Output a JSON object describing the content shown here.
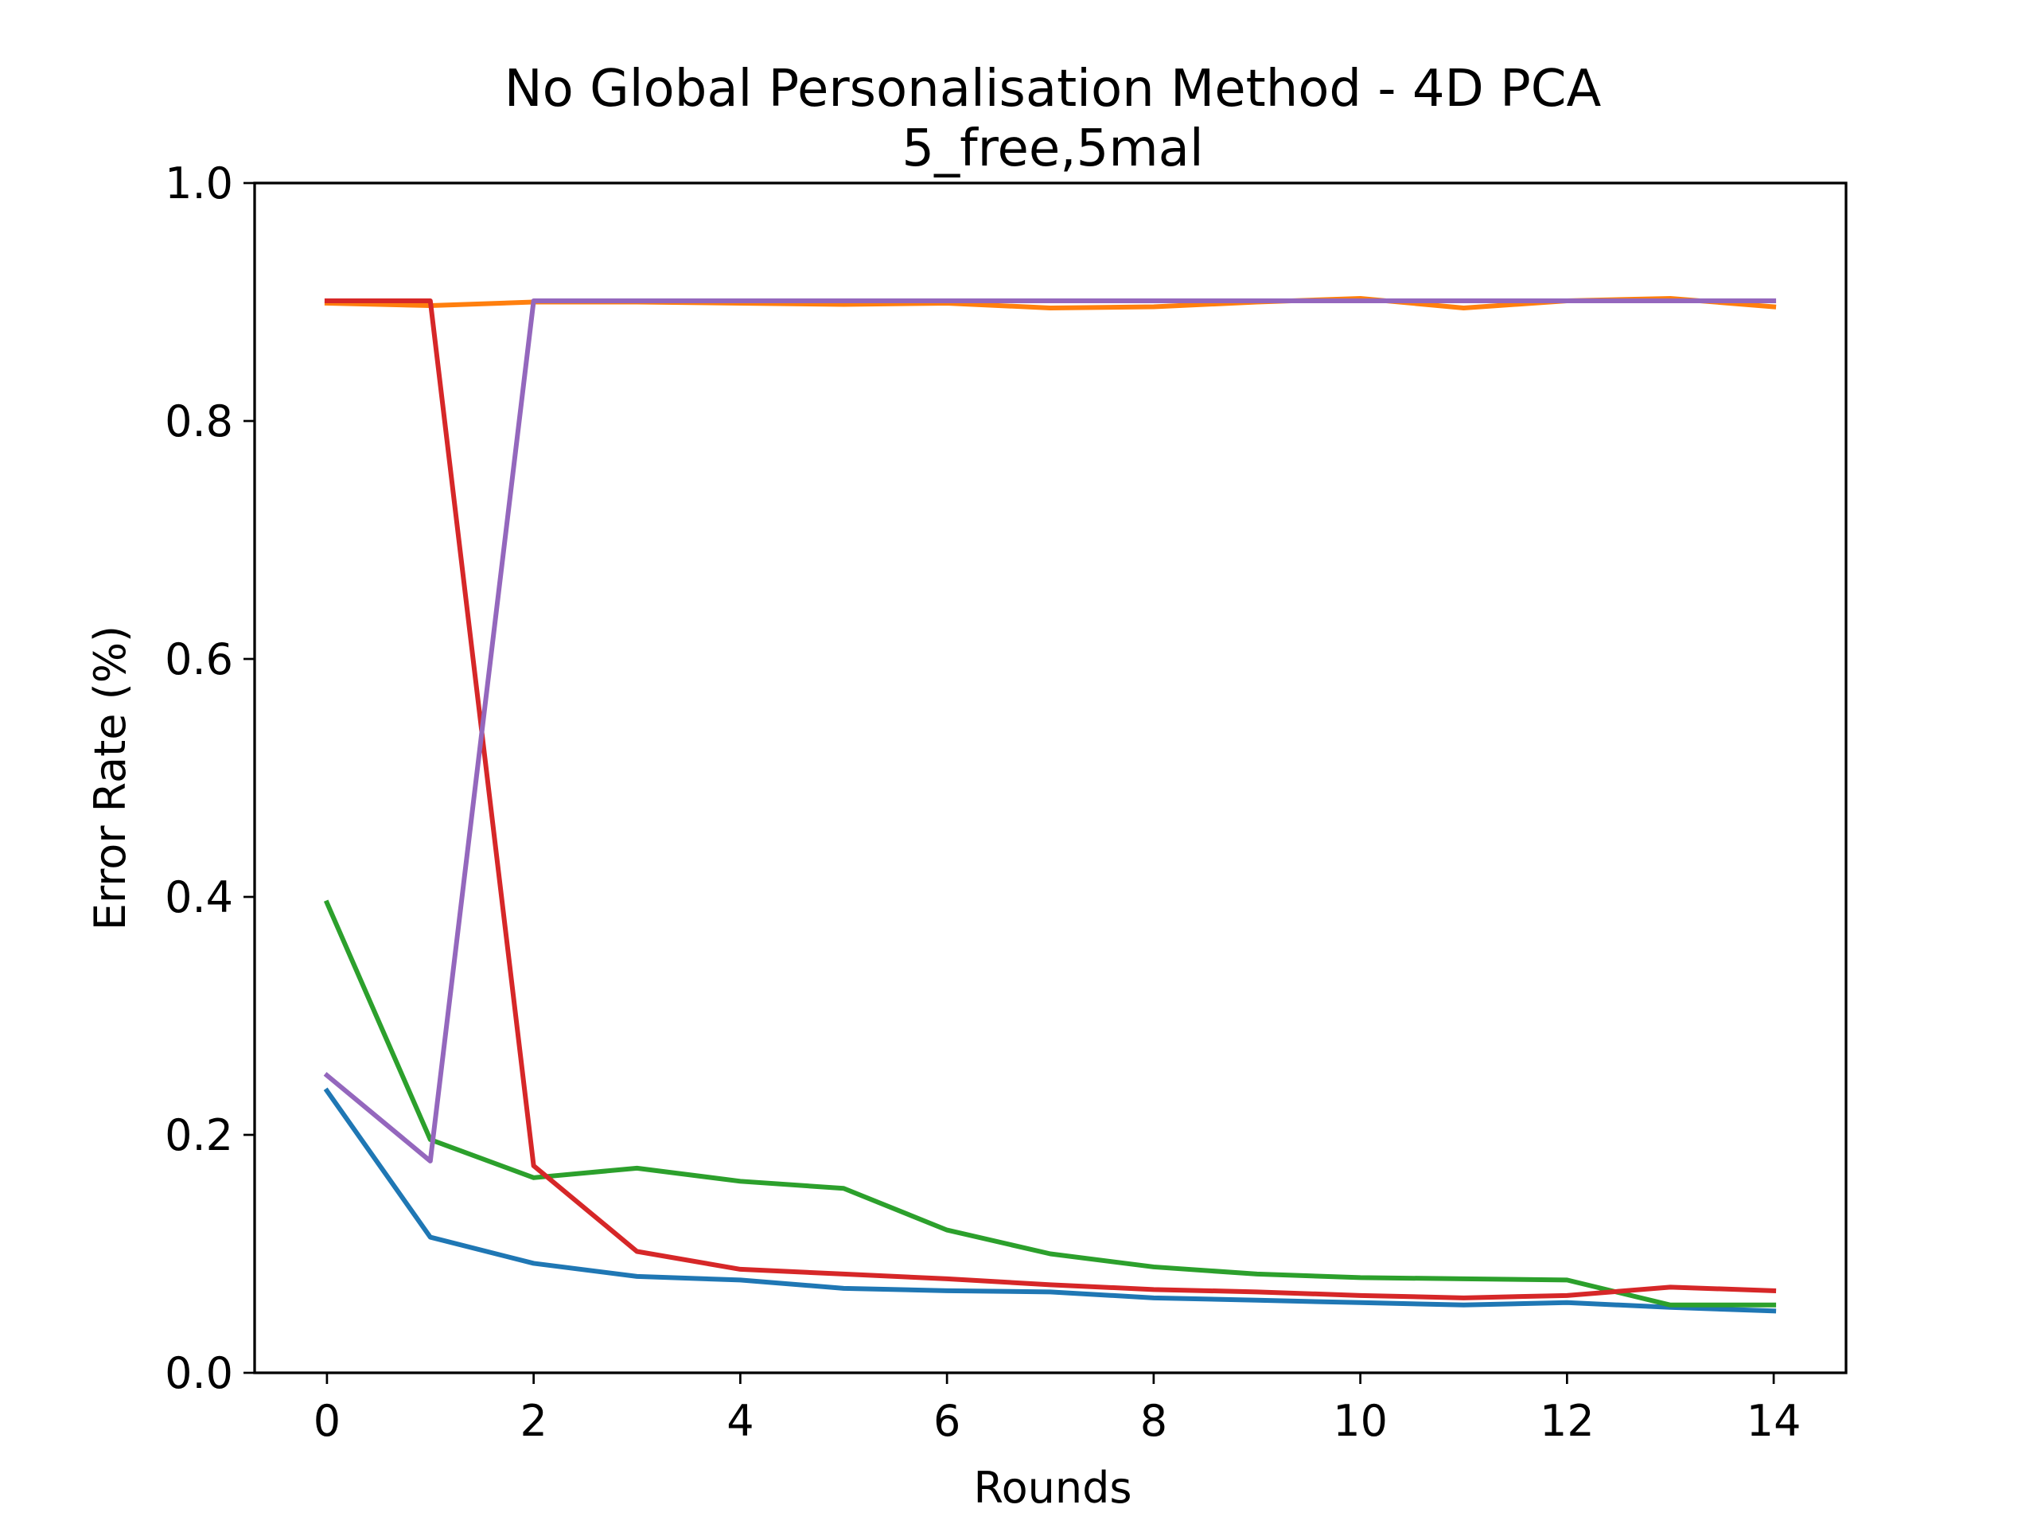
{
  "chart_data": {
    "type": "line",
    "title": "No Global Personalisation Method - 4D PCA",
    "subtitle": "5_free,5mal",
    "xlabel": "Rounds",
    "ylabel": "Error Rate (%)",
    "xlim": [
      -0.7,
      14.7
    ],
    "ylim": [
      0,
      1.0
    ],
    "xticks": [
      0,
      2,
      4,
      6,
      8,
      10,
      12,
      14
    ],
    "xtick_labels": [
      "0",
      "2",
      "4",
      "6",
      "8",
      "10",
      "12",
      "14"
    ],
    "yticks": [
      0.0,
      0.2,
      0.4,
      0.6,
      0.8,
      1.0
    ],
    "ytick_labels": [
      "0.0",
      "0.2",
      "0.4",
      "0.6",
      "0.8",
      "1.0"
    ],
    "grid": false,
    "x": [
      0,
      1,
      2,
      3,
      4,
      5,
      6,
      7,
      8,
      9,
      10,
      11,
      12,
      13,
      14
    ],
    "series": [
      {
        "color": "#1f77b4",
        "values": [
          0.237,
          0.114,
          0.092,
          0.081,
          0.078,
          0.071,
          0.069,
          0.068,
          0.063,
          0.061,
          0.059,
          0.057,
          0.059,
          0.055,
          0.052
        ]
      },
      {
        "color": "#ff7f0e",
        "values": [
          0.899,
          0.897,
          0.9,
          0.9,
          0.899,
          0.898,
          0.899,
          0.895,
          0.896,
          0.9,
          0.903,
          0.895,
          0.901,
          0.903,
          0.896
        ]
      },
      {
        "color": "#2ca02c",
        "values": [
          0.395,
          0.196,
          0.164,
          0.172,
          0.161,
          0.155,
          0.12,
          0.1,
          0.089,
          0.083,
          0.08,
          0.079,
          0.078,
          0.057,
          0.057
        ]
      },
      {
        "color": "#d62728",
        "values": [
          0.901,
          0.901,
          0.174,
          0.102,
          0.087,
          0.083,
          0.079,
          0.074,
          0.07,
          0.068,
          0.065,
          0.063,
          0.065,
          0.072,
          0.069
        ]
      },
      {
        "color": "#9467bd",
        "values": [
          0.25,
          0.178,
          0.901,
          0.901,
          0.901,
          0.901,
          0.901,
          0.901,
          0.901,
          0.901,
          0.901,
          0.901,
          0.901,
          0.901,
          0.901
        ]
      }
    ]
  }
}
